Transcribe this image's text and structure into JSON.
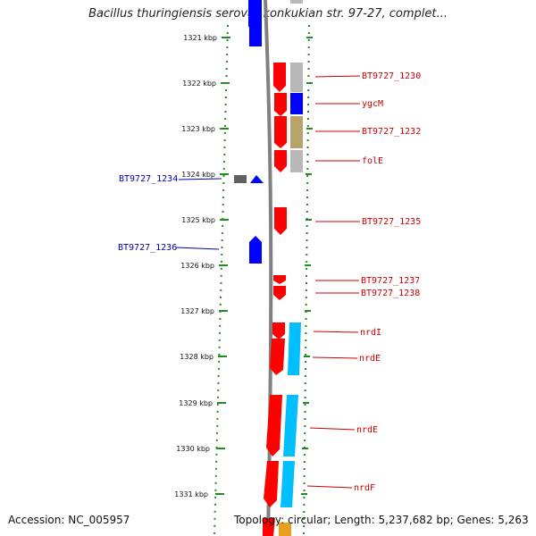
{
  "title": "Bacillus thuringiensis serovar konkukian str. 97-27, complet...",
  "footer": {
    "accession": "Accession: NC_005957",
    "summary": "Topology: circular; Length: 5,237,682 bp; Genes: 5,263"
  },
  "scale": {
    "ticks": [
      "1321 kbp",
      "1322 kbp",
      "1323 kbp",
      "1324 kbp",
      "1325 kbp",
      "1326 kbp",
      "1327 kbp",
      "1328 kbp",
      "1329 kbp",
      "1330 kbp",
      "1331 kbp"
    ]
  },
  "gene_labels": {
    "bt9727_1230": "BT9727_1230",
    "ygcm": "ygcM",
    "bt9727_1232": "BT9727_1232",
    "fole": "folE",
    "bt9727_1234": "BT9727_1234",
    "bt9727_1235": "BT9727_1235",
    "bt9727_1236": "BT9727_1236",
    "bt9727_1237": "BT9727_1237",
    "bt9727_1238": "BT9727_1238",
    "nrdi": "nrdI",
    "nrde_1": "nrdE",
    "nrde_2": "nrdE",
    "nrdf": "nrdF"
  },
  "colors": {
    "forward_gene": "#ff0000",
    "reverse_gene": "#0000ff",
    "label_red": "#cc0000",
    "label_blue": "#0000aa",
    "scale_green": "#228b22",
    "backbone": "#808080",
    "cog_gray": "#b8b8b8",
    "cog_blue": "#0000ff",
    "cog_olive": "#b8a46a",
    "cog_cyan": "#00bfff",
    "cog_orange": "#e8a020"
  }
}
